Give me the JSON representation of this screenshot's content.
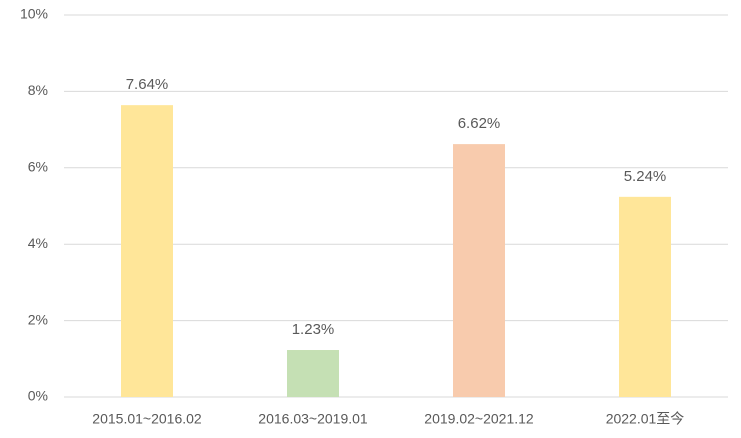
{
  "chart_data": {
    "type": "bar",
    "categories": [
      "2015.01~2016.02",
      "2016.03~2019.01",
      "2019.02~2021.12",
      "2022.01至今"
    ],
    "values": [
      7.64,
      1.23,
      6.62,
      5.24
    ],
    "value_labels": [
      "7.64%",
      "1.23%",
      "6.62%",
      "5.24%"
    ],
    "colors": [
      "#ffe699",
      "#c5e0b4",
      "#f8cbad",
      "#ffe699"
    ],
    "ylim": [
      0,
      10
    ],
    "yticks": [
      {
        "value": 0,
        "label": "0%"
      },
      {
        "value": 2,
        "label": "2%"
      },
      {
        "value": 4,
        "label": "4%"
      },
      {
        "value": 6,
        "label": "6%"
      },
      {
        "value": 8,
        "label": "8%"
      },
      {
        "value": 10,
        "label": "10%"
      }
    ],
    "grid": true
  }
}
